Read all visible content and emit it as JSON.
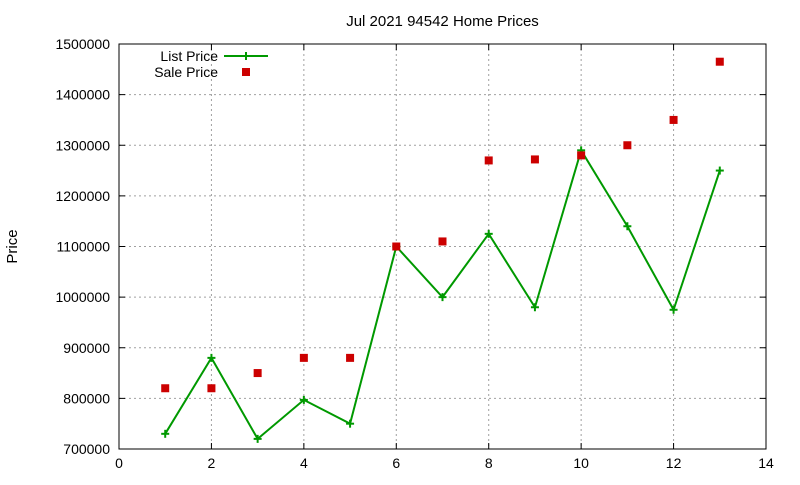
{
  "chart_data": {
    "type": "line",
    "title": "Jul 2021 94542 Home Prices",
    "xlabel": "",
    "ylabel": "Price",
    "xlim": [
      0,
      14
    ],
    "ylim": [
      700000,
      1500000
    ],
    "xticks": [
      0,
      2,
      4,
      6,
      8,
      10,
      12,
      14
    ],
    "yticks": [
      700000,
      800000,
      900000,
      1000000,
      1100000,
      1200000,
      1300000,
      1400000,
      1500000
    ],
    "grid": true,
    "legend_position": "top-left",
    "series": [
      {
        "name": "List Price",
        "style": "line-with-plus-markers",
        "color": "#009900",
        "x": [
          1,
          2,
          3,
          4,
          5,
          6,
          7,
          8,
          9,
          10,
          11,
          12,
          13
        ],
        "values": [
          730000,
          880000,
          720000,
          797000,
          750000,
          1100000,
          1000000,
          1125000,
          980000,
          1290000,
          1140000,
          975000,
          1250000
        ]
      },
      {
        "name": "Sale Price",
        "style": "square-points",
        "color": "#cc0000",
        "x": [
          1,
          2,
          3,
          4,
          5,
          6,
          7,
          8,
          9,
          10,
          11,
          12,
          13
        ],
        "values": [
          820000,
          820000,
          850000,
          880000,
          880000,
          1100000,
          1110000,
          1270000,
          1272000,
          1280000,
          1300000,
          1350000,
          1465000
        ]
      }
    ]
  }
}
